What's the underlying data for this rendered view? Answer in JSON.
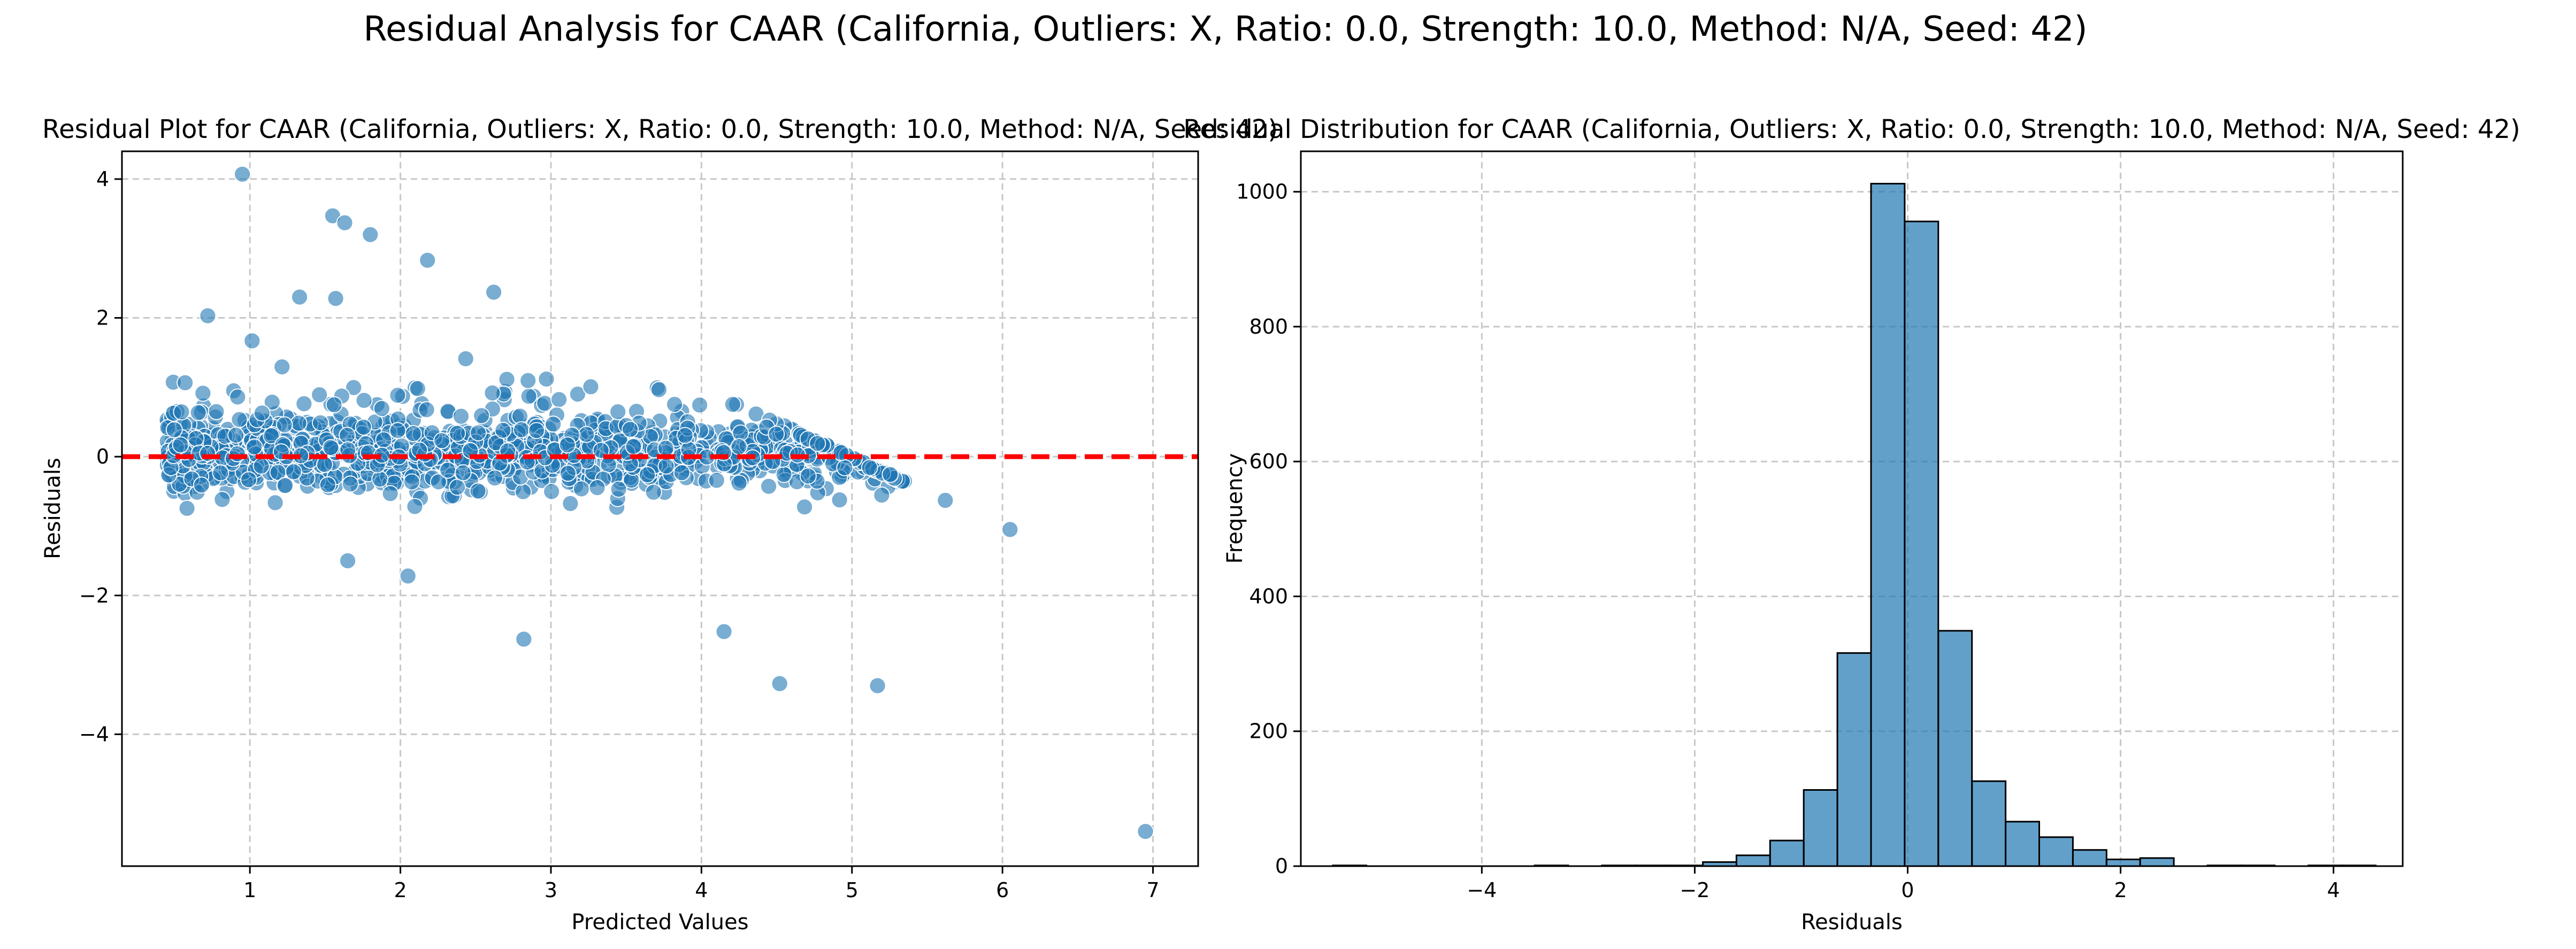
{
  "figure": {
    "suptitle": "Residual Analysis for CAAR (California, Outliers: X, Ratio: 0.0, Strength: 10.0, Method: N/A, Seed: 42)"
  },
  "chart_data": [
    {
      "type": "scatter",
      "title": "Residual Plot for CAAR (California, Outliers: X, Ratio: 0.0, Strength: 10.0, Method: N/A, Seed: 42)",
      "xlabel": "Predicted Values",
      "ylabel": "Residuals",
      "xlim": [
        0.15,
        7.3
      ],
      "ylim": [
        -5.9,
        4.4
      ],
      "xticks": [
        1,
        2,
        3,
        4,
        5,
        6,
        7
      ],
      "yticks": [
        -4,
        -2,
        0,
        2,
        4
      ],
      "ytick_labels": [
        "−4",
        "−2",
        "0",
        "2",
        "4"
      ],
      "grid": true,
      "reference_line": {
        "y": 0,
        "color": "#ff0000",
        "style": "dashed"
      },
      "marker_color": "#1f77b4",
      "notable_points": [
        {
          "x": 0.95,
          "y": 4.07
        },
        {
          "x": 1.55,
          "y": 3.47
        },
        {
          "x": 1.63,
          "y": 3.37
        },
        {
          "x": 1.8,
          "y": 3.2
        },
        {
          "x": 2.18,
          "y": 2.83
        },
        {
          "x": 2.62,
          "y": 2.37
        },
        {
          "x": 0.72,
          "y": 2.03
        },
        {
          "x": 1.33,
          "y": 2.3
        },
        {
          "x": 1.57,
          "y": 2.28
        },
        {
          "x": 6.95,
          "y": -5.4
        },
        {
          "x": 4.52,
          "y": -3.27
        },
        {
          "x": 5.17,
          "y": -3.3
        },
        {
          "x": 2.82,
          "y": -2.63
        },
        {
          "x": 4.15,
          "y": -2.52
        },
        {
          "x": 5.62,
          "y": -0.63
        },
        {
          "x": 6.05,
          "y": -1.05
        },
        {
          "x": 1.65,
          "y": -1.5
        },
        {
          "x": 2.05,
          "y": -1.72
        }
      ],
      "bulk_description": {
        "x_range": [
          0.45,
          5.35
        ],
        "upper_boundary_line": "residual = 5.0 - predicted"
      },
      "n_points_approx": 3000
    },
    {
      "type": "bar",
      "subtype": "histogram",
      "title": "Residual Distribution for CAAR (California, Outliers: X, Ratio: 0.0, Strength: 10.0, Method: N/A, Seed: 42)",
      "xlabel": "Residuals",
      "ylabel": "Frequency",
      "xlim": [
        -5.7,
        4.65
      ],
      "ylim": [
        0,
        1060
      ],
      "xticks": [
        -4,
        -2,
        0,
        2,
        4
      ],
      "xtick_labels": [
        "−4",
        "−2",
        "0",
        "2",
        "4"
      ],
      "yticks": [
        0,
        200,
        400,
        600,
        800,
        1000
      ],
      "grid": true,
      "bar_color": "#1f77b4",
      "bin_start": -5.4,
      "bin_width": 0.316,
      "counts": [
        1,
        0,
        0,
        0,
        0,
        0,
        1,
        0,
        1,
        1,
        1,
        6,
        16,
        38,
        113,
        316,
        1012,
        956,
        349,
        126,
        66,
        43,
        24,
        10,
        12,
        0,
        1,
        1,
        0,
        1,
        1
      ]
    }
  ]
}
